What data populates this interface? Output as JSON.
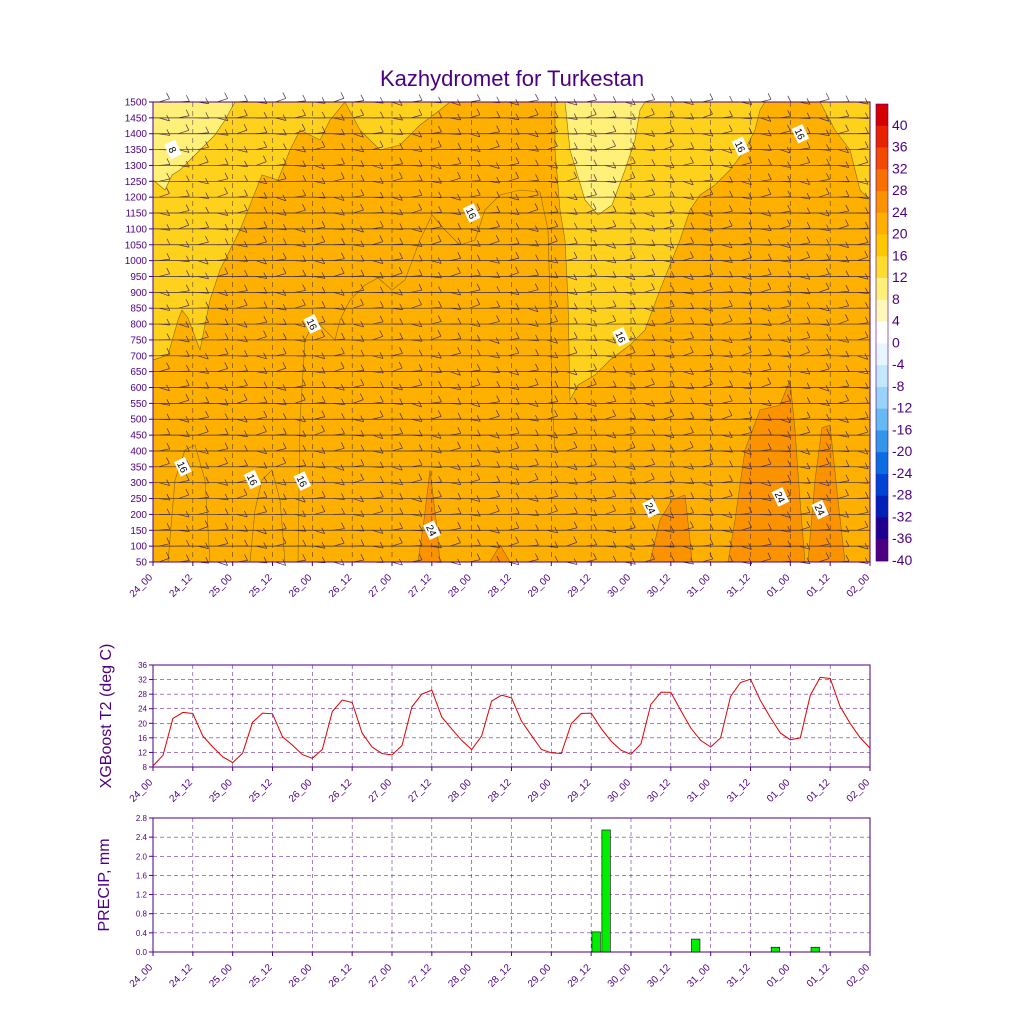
{
  "title": "Kazhydromet for Turkestan",
  "time_ticks": [
    "24_00",
    "24_12",
    "25_00",
    "25_12",
    "26_00",
    "26_12",
    "27_00",
    "27_12",
    "28_00",
    "28_12",
    "29_00",
    "29_12",
    "30_00",
    "30_12",
    "31_00",
    "31_12",
    "01_00",
    "01_12",
    "02_00"
  ],
  "chart_data": [
    {
      "type": "heatmap",
      "y_ticks": [
        50,
        100,
        150,
        200,
        250,
        300,
        350,
        400,
        450,
        500,
        550,
        600,
        650,
        700,
        750,
        800,
        850,
        900,
        950,
        1000,
        1050,
        1100,
        1150,
        1200,
        1250,
        1300,
        1350,
        1400,
        1450,
        1500
      ],
      "ylim": [
        50,
        1500
      ],
      "colorbar_labels": [
        "40",
        "36",
        "32",
        "28",
        "24",
        "20",
        "16",
        "12",
        "8",
        "4",
        "0",
        "-4",
        "-8",
        "-12",
        "-16",
        "-20",
        "-24",
        "-28",
        "-32",
        "-36",
        "-40"
      ],
      "colorbar_colors": [
        "#d40000",
        "#e82400",
        "#f24a00",
        "#f77000",
        "#fb9200",
        "#fdb000",
        "#fec800",
        "#fedc30",
        "#fff07a",
        "#fff8b8",
        "#ffffff",
        "#e6f6ff",
        "#c4e8fb",
        "#98d4f7",
        "#64baf2",
        "#3496e8",
        "#0a6ee0",
        "#0044d4",
        "#0020b8",
        "#20008f",
        "#4b0082"
      ],
      "contour_labels": [
        {
          "text": "8",
          "x": "24_06",
          "y": 1350
        },
        {
          "text": "16",
          "x": "28_00",
          "y": 1150
        },
        {
          "text": "16",
          "x": "31_09",
          "y": 1360
        },
        {
          "text": "16",
          "x": "01_03",
          "y": 1400
        },
        {
          "text": "16",
          "x": "26_00",
          "y": 800
        },
        {
          "text": "16",
          "x": "29_21",
          "y": 760
        },
        {
          "text": "16",
          "x": "24_09",
          "y": 350
        },
        {
          "text": "16",
          "x": "25_06",
          "y": 310
        },
        {
          "text": "16",
          "x": "25_21",
          "y": 305
        },
        {
          "text": "24",
          "x": "27_12",
          "y": 150
        },
        {
          "text": "24",
          "x": "30_06",
          "y": 220
        },
        {
          "text": "24",
          "x": "31_21",
          "y": 255
        },
        {
          "text": "24",
          "x": "01_09",
          "y": 215
        }
      ]
    },
    {
      "type": "line",
      "ylabel": "XGBoost T2 (deg C)",
      "ylim": [
        8,
        36
      ],
      "y_ticks": [
        "8",
        "12",
        "16",
        "20",
        "24",
        "28",
        "32",
        "36"
      ],
      "color": "#e00000",
      "x_hours": [
        0,
        3,
        6,
        9,
        12,
        15,
        18,
        21,
        24,
        27,
        30,
        33,
        36,
        39,
        42,
        45,
        48,
        51,
        54,
        57,
        60,
        63,
        66,
        69,
        72,
        75,
        78,
        81,
        84,
        87,
        90,
        93,
        96,
        99,
        102,
        105,
        108,
        111,
        114,
        117,
        120,
        123,
        126,
        129,
        132,
        135,
        138,
        141,
        144,
        147,
        150,
        153,
        156,
        159,
        162,
        165,
        168,
        171,
        174,
        177,
        180,
        183,
        186,
        189,
        192,
        195,
        198,
        201,
        204,
        207,
        210,
        213,
        216
      ],
      "values": [
        8.3,
        11.2,
        21.3,
        23.0,
        22.7,
        16.5,
        13.5,
        10.8,
        9.2,
        11.8,
        20.3,
        22.8,
        22.6,
        16.3,
        14.0,
        11.4,
        10.4,
        12.8,
        23.2,
        26.4,
        25.7,
        17.3,
        13.5,
        11.7,
        11.3,
        13.9,
        24.5,
        28.0,
        29.1,
        21.7,
        18.4,
        15.3,
        12.8,
        16.5,
        26.1,
        27.7,
        27.0,
        20.6,
        16.7,
        12.8,
        11.9,
        11.7,
        19.9,
        22.7,
        22.8,
        18.6,
        15.1,
        12.6,
        11.5,
        14.4,
        25.2,
        28.5,
        28.5,
        23.5,
        18.7,
        15.3,
        13.5,
        16.0,
        27.4,
        31.2,
        32.1,
        26.2,
        21.6,
        17.3,
        15.5,
        16.0,
        27.7,
        32.6,
        32.3,
        24.6,
        20.0,
        16.1,
        13.2
      ]
    },
    {
      "type": "bar",
      "ylabel": "PRECIP, mm",
      "ylim": [
        0,
        2.8
      ],
      "y_ticks": [
        "0.0",
        "0.4",
        "0.8",
        "1.2",
        "1.6",
        "2.0",
        "2.4",
        "2.8"
      ],
      "color": "#00ee00",
      "bars": [
        {
          "hour": 135,
          "value": 0.42
        },
        {
          "hour": 138,
          "value": 2.55
        },
        {
          "hour": 165,
          "value": 0.27
        },
        {
          "hour": 189,
          "value": 0.1
        },
        {
          "hour": 201,
          "value": 0.1
        }
      ]
    }
  ]
}
